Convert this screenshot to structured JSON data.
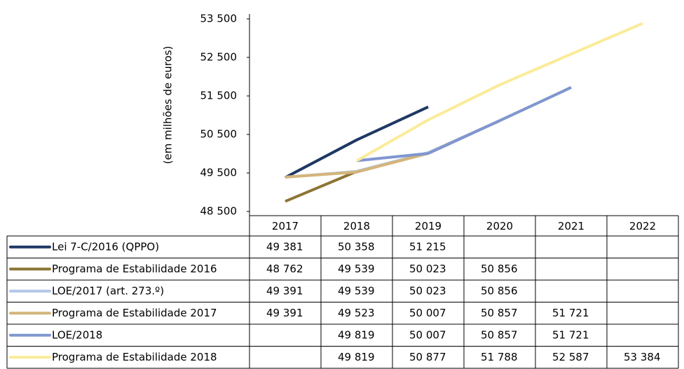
{
  "chart_data": {
    "type": "line",
    "y_axis_label": "(em milhões de euros)",
    "categories": [
      "2017",
      "2018",
      "2019",
      "2020",
      "2021",
      "2022"
    ],
    "ylim": [
      48500,
      53500
    ],
    "yticks": [
      {
        "value": 48500,
        "label": "48 500"
      },
      {
        "value": 49500,
        "label": "49 500"
      },
      {
        "value": 50500,
        "label": "50 500"
      },
      {
        "value": 51500,
        "label": "51 500"
      },
      {
        "value": 52500,
        "label": "52 500"
      },
      {
        "value": 53500,
        "label": "53 500"
      }
    ],
    "series": [
      {
        "name": "Lei 7-C/2016 (QPPO)",
        "color": "#1f3864",
        "values": [
          49381,
          50358,
          51215,
          null,
          null,
          null
        ],
        "value_labels": [
          "49 381",
          "50 358",
          "51 215",
          null,
          null,
          null
        ]
      },
      {
        "name": "Programa de Estabilidade 2016",
        "color": "#8c7535",
        "values": [
          48762,
          49539,
          50023,
          50856,
          null,
          null
        ],
        "value_labels": [
          "48 762",
          "49 539",
          "50 023",
          "50 856",
          null,
          null
        ]
      },
      {
        "name": "LOE/2017 (art. 273.º)",
        "color": "#b4c7e7",
        "values": [
          49391,
          49539,
          50023,
          50856,
          null,
          null
        ],
        "value_labels": [
          "49 391",
          "49 539",
          "50 023",
          "50 856",
          null,
          null
        ]
      },
      {
        "name": "Programa de Estabilidade 2017",
        "color": "#d4b57a",
        "values": [
          49391,
          49523,
          50007,
          50857,
          51721,
          null
        ],
        "value_labels": [
          "49 391",
          "49 523",
          "50 007",
          "50 857",
          "51 721",
          null
        ]
      },
      {
        "name": "LOE/2018",
        "color": "#7f96d1",
        "values": [
          null,
          49819,
          50007,
          50857,
          51721,
          null
        ],
        "value_labels": [
          null,
          "49 819",
          "50 007",
          "50 857",
          "51 721",
          null
        ]
      },
      {
        "name": "Programa de Estabilidade 2018",
        "color": "#fbeb99",
        "values": [
          null,
          49819,
          50877,
          51788,
          52587,
          53384
        ],
        "value_labels": [
          null,
          "49 819",
          "50 877",
          "51 788",
          "52 587",
          "53 384"
        ]
      }
    ]
  }
}
